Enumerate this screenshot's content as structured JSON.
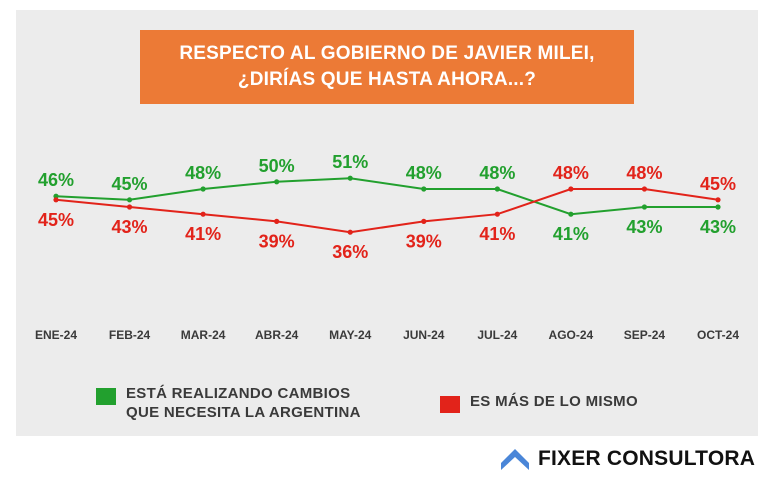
{
  "title_lines": [
    "RESPECTO AL GOBIERNO DE JAVIER MILEI,",
    "¿DIRÍAS QUE HASTA AHORA...?"
  ],
  "chart_data": {
    "type": "line",
    "title": "RESPECTO AL GOBIERNO DE JAVIER MILEI, ¿DIRÍAS QUE HASTA AHORA...?",
    "categories": [
      "ENE-24",
      "FEB-24",
      "MAR-24",
      "ABR-24",
      "MAY-24",
      "JUN-24",
      "JUL-24",
      "AGO-24",
      "SEP-24",
      "OCT-24"
    ],
    "series": [
      {
        "name": "ESTÁ REALIZANDO CAMBIOS QUE NECESITA LA ARGENTINA",
        "color": "#22a02e",
        "values": [
          46,
          45,
          48,
          50,
          51,
          48,
          48,
          41,
          43,
          43
        ],
        "labels": [
          "46%",
          "45%",
          "48%",
          "50%",
          "51%",
          "48%",
          "48%",
          "41%",
          "43%",
          "43%"
        ]
      },
      {
        "name": "ES MÁS DE LO MISMO",
        "color": "#e2231a",
        "values": [
          45,
          43,
          41,
          39,
          36,
          39,
          41,
          48,
          48,
          45
        ],
        "labels": [
          "45%",
          "43%",
          "41%",
          "39%",
          "36%",
          "39%",
          "41%",
          "48%",
          "48%",
          "45%"
        ]
      }
    ],
    "legend": "bottom"
  },
  "legend": {
    "green_lines": [
      "ESTÁ REALIZANDO CAMBIOS",
      "QUE NECESITA LA ARGENTINA"
    ],
    "red_lines": [
      "ES MÁS DE LO MISMO"
    ]
  },
  "brand": {
    "name": "FIXER CONSULTORA",
    "icon": "chevron-up-icon",
    "color": "#4a86d8"
  }
}
